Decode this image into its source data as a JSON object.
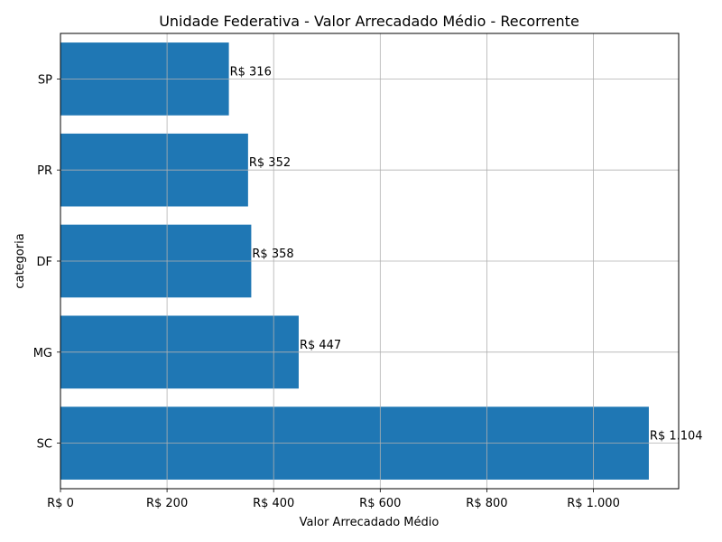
{
  "chart_data": {
    "type": "bar",
    "orientation": "horizontal",
    "title": "Unidade Federativa - Valor Arrecadado Médio - Recorrente",
    "xlabel": "Valor Arrecadado Médio",
    "ylabel": "categoria",
    "categories": [
      "SC",
      "MG",
      "DF",
      "PR",
      "SP"
    ],
    "values": [
      1104,
      447,
      358,
      352,
      316
    ],
    "value_labels": [
      "R$ 1.104",
      "R$ 447",
      "R$ 358",
      "R$ 352",
      "R$ 316"
    ],
    "xlim": [
      0,
      1160
    ],
    "x_ticks": [
      0,
      200,
      400,
      600,
      800,
      1000
    ],
    "x_tick_labels": [
      "R$ 0",
      "R$ 200",
      "R$ 400",
      "R$ 600",
      "R$ 800",
      "R$ 1.000"
    ],
    "grid": true,
    "bar_color": "#1f77b4",
    "grid_color": "#b0b0b0"
  }
}
